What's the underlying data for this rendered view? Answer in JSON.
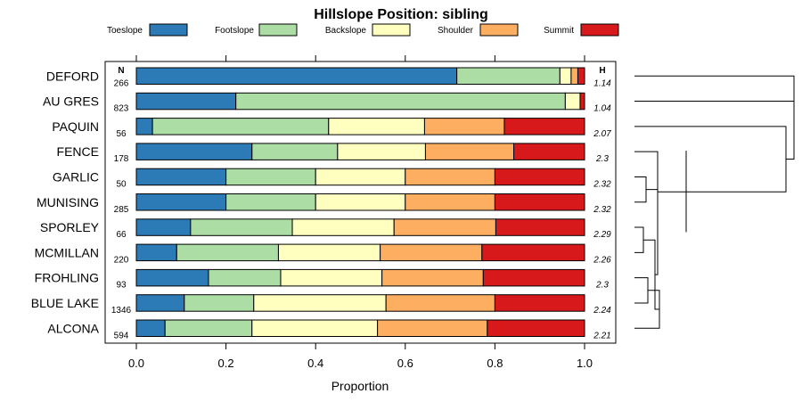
{
  "chart_data": {
    "type": "bar",
    "orientation": "horizontal-stacked",
    "title": "Hillslope Position: sibling",
    "xlabel": "Proportion",
    "ylabel": "",
    "xlim": [
      0,
      1
    ],
    "xticks": [
      "0.0",
      "0.2",
      "0.4",
      "0.6",
      "0.8",
      "1.0"
    ],
    "xtick_values": [
      0,
      0.2,
      0.4,
      0.6,
      0.8,
      1.0
    ],
    "n_header": "N",
    "h_header": "H",
    "legend": [
      {
        "name": "Toeslope",
        "color": "#2c7bb6"
      },
      {
        "name": "Footslope",
        "color": "#abdda4"
      },
      {
        "name": "Backslope",
        "color": "#ffffbf"
      },
      {
        "name": "Shoulder",
        "color": "#fdae61"
      },
      {
        "name": "Summit",
        "color": "#d7191c"
      }
    ],
    "rows": [
      {
        "name": "DEFORD",
        "n": "266",
        "h": "1.14",
        "values": [
          0.715,
          0.23,
          0.025,
          0.015,
          0.015
        ]
      },
      {
        "name": "AU GRES",
        "n": "823",
        "h": "1.04",
        "values": [
          0.222,
          0.735,
          0.033,
          0.0,
          0.01
        ]
      },
      {
        "name": "PAQUIN",
        "n": "56",
        "h": "2.07",
        "values": [
          0.036,
          0.393,
          0.214,
          0.178,
          0.179
        ]
      },
      {
        "name": "FENCE",
        "n": "178",
        "h": "2.3",
        "values": [
          0.258,
          0.191,
          0.196,
          0.197,
          0.158
        ]
      },
      {
        "name": "GARLIC",
        "n": "50",
        "h": "2.32",
        "values": [
          0.2,
          0.2,
          0.2,
          0.2,
          0.2
        ]
      },
      {
        "name": "MUNISING",
        "n": "285",
        "h": "2.32",
        "values": [
          0.2,
          0.2,
          0.2,
          0.2,
          0.2
        ]
      },
      {
        "name": "SPORLEY",
        "n": "66",
        "h": "2.29",
        "values": [
          0.121,
          0.227,
          0.227,
          0.227,
          0.198
        ]
      },
      {
        "name": "MCMILLAN",
        "n": "220",
        "h": "2.26",
        "values": [
          0.09,
          0.227,
          0.227,
          0.227,
          0.229
        ]
      },
      {
        "name": "FROHLING",
        "n": "93",
        "h": "2.3",
        "values": [
          0.161,
          0.161,
          0.226,
          0.226,
          0.226
        ]
      },
      {
        "name": "BLUE LAKE",
        "n": "1346",
        "h": "2.24",
        "values": [
          0.107,
          0.155,
          0.295,
          0.243,
          0.2
        ]
      },
      {
        "name": "ALCONA",
        "n": "594",
        "h": "2.21",
        "values": [
          0.064,
          0.194,
          0.28,
          0.245,
          0.217
        ]
      }
    ],
    "dendrogram": "hierarchical clustering of sibling series (right margin)"
  }
}
